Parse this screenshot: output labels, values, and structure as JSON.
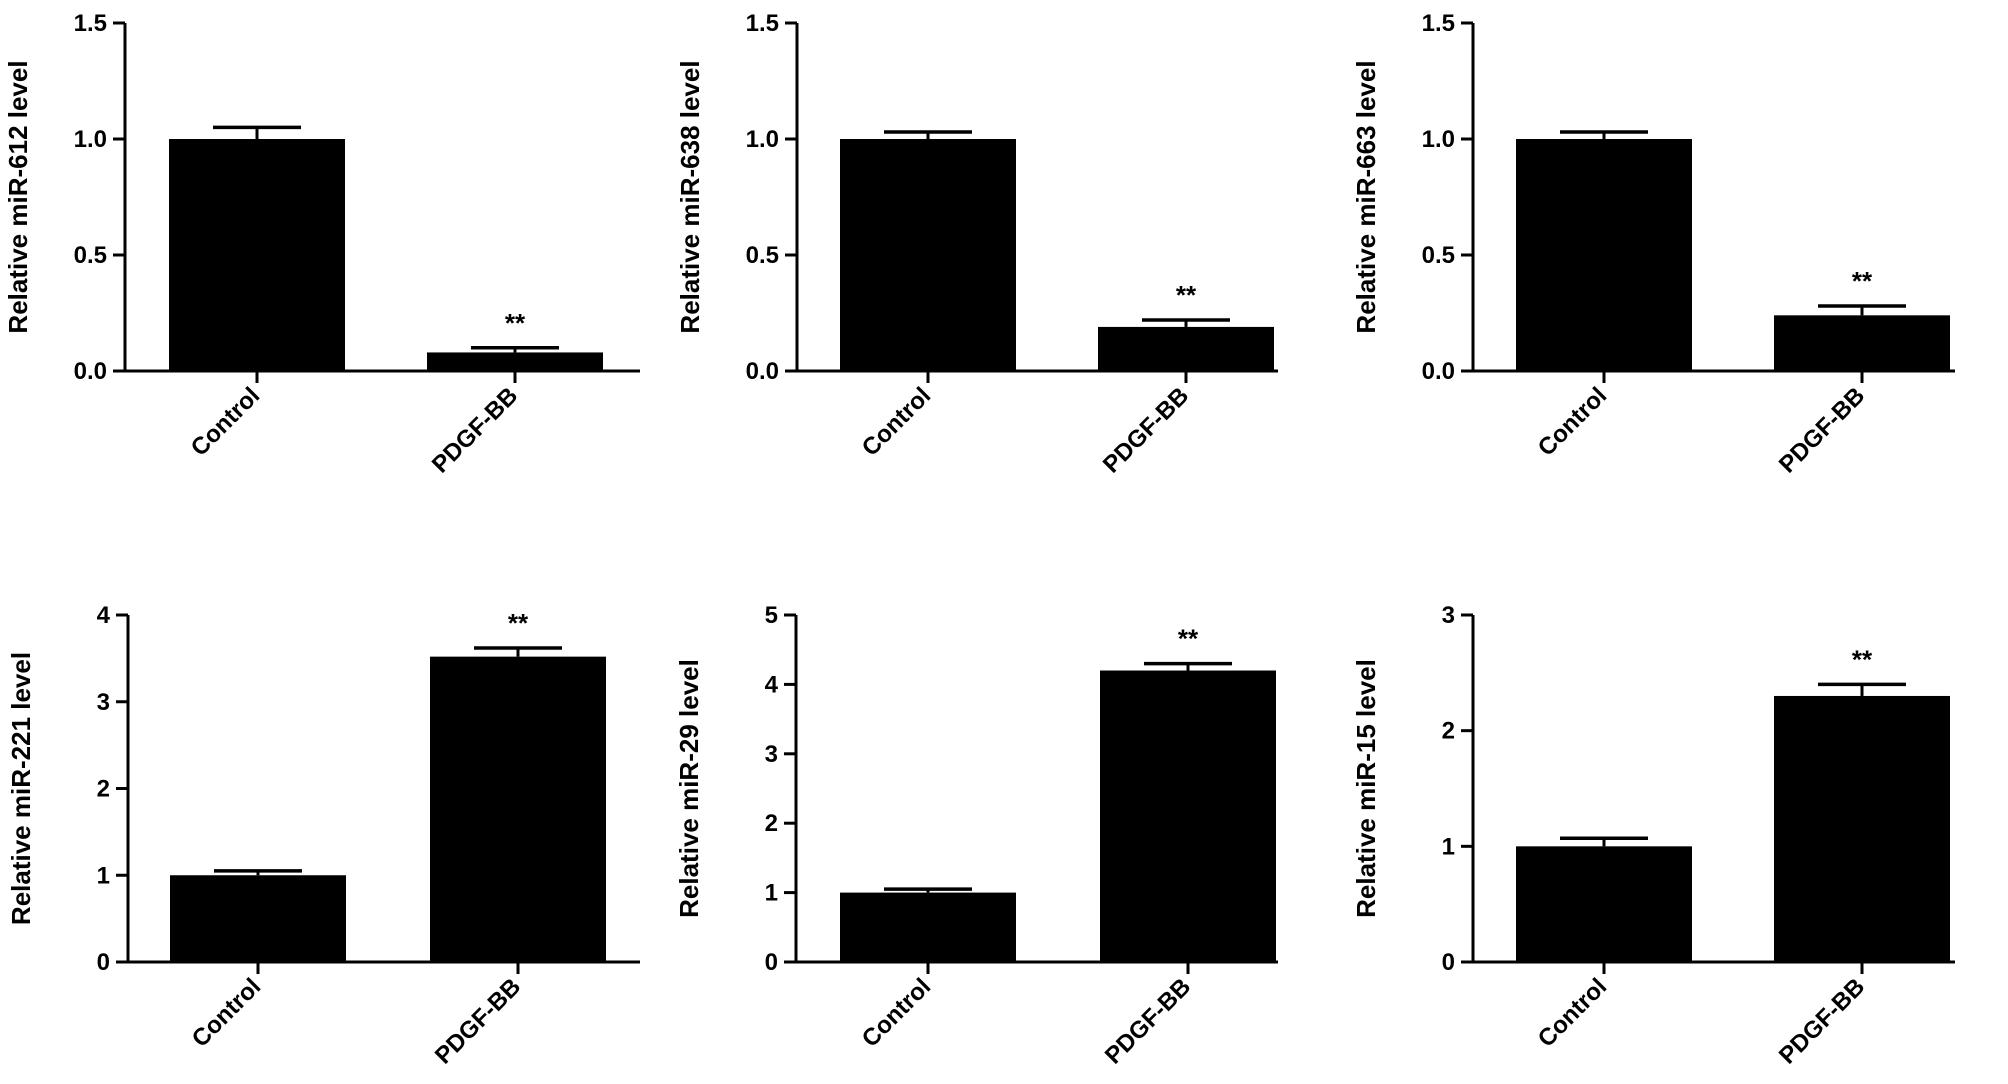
{
  "chart_data": [
    {
      "type": "bar",
      "categories": [
        "Control",
        "PDGF-BB"
      ],
      "values": [
        1.0,
        0.08
      ],
      "errors": [
        0.05,
        0.02
      ],
      "significance": [
        "",
        "**"
      ],
      "ylabel": "Relative miR-612 level",
      "ylim": [
        0,
        1.5
      ],
      "yticks": [
        "0.0",
        "0.5",
        "1.0",
        "1.5"
      ],
      "color": "#000000"
    },
    {
      "type": "bar",
      "categories": [
        "Control",
        "PDGF-BB"
      ],
      "values": [
        1.0,
        0.19
      ],
      "errors": [
        0.03,
        0.03
      ],
      "significance": [
        "",
        "**"
      ],
      "ylabel": "Relative miR-638 level",
      "ylim": [
        0,
        1.5
      ],
      "yticks": [
        "0.0",
        "0.5",
        "1.0",
        "1.5"
      ],
      "color": "#000000"
    },
    {
      "type": "bar",
      "categories": [
        "Control",
        "PDGF-BB"
      ],
      "values": [
        1.0,
        0.24
      ],
      "errors": [
        0.03,
        0.04
      ],
      "significance": [
        "",
        "**"
      ],
      "ylabel": "Relative miR-663 level",
      "ylim": [
        0,
        1.5
      ],
      "yticks": [
        "0.0",
        "0.5",
        "1.0",
        "1.5"
      ],
      "color": "#000000"
    },
    {
      "type": "bar",
      "categories": [
        "Control",
        "PDGF-BB"
      ],
      "values": [
        1.0,
        3.52
      ],
      "errors": [
        0.05,
        0.1
      ],
      "significance": [
        "",
        "**"
      ],
      "ylabel": "Relative miR-221 level",
      "ylim": [
        0,
        4
      ],
      "yticks": [
        "0",
        "1",
        "2",
        "3",
        "4"
      ],
      "color": "#000000"
    },
    {
      "type": "bar",
      "categories": [
        "Control",
        "PDGF-BB"
      ],
      "values": [
        1.0,
        4.2
      ],
      "errors": [
        0.05,
        0.1
      ],
      "significance": [
        "",
        "**"
      ],
      "ylabel": "Relative miR-29 level",
      "ylim": [
        0,
        5
      ],
      "yticks": [
        "0",
        "1",
        "2",
        "3",
        "4",
        "5"
      ],
      "color": "#000000"
    },
    {
      "type": "bar",
      "categories": [
        "Control",
        "PDGF-BB"
      ],
      "values": [
        1.0,
        2.3
      ],
      "errors": [
        0.07,
        0.1
      ],
      "significance": [
        "",
        "**"
      ],
      "ylabel": "Relative miR-15 level",
      "ylim": [
        0,
        3
      ],
      "yticks": [
        "0",
        "1",
        "2",
        "3"
      ],
      "color": "#000000"
    }
  ]
}
